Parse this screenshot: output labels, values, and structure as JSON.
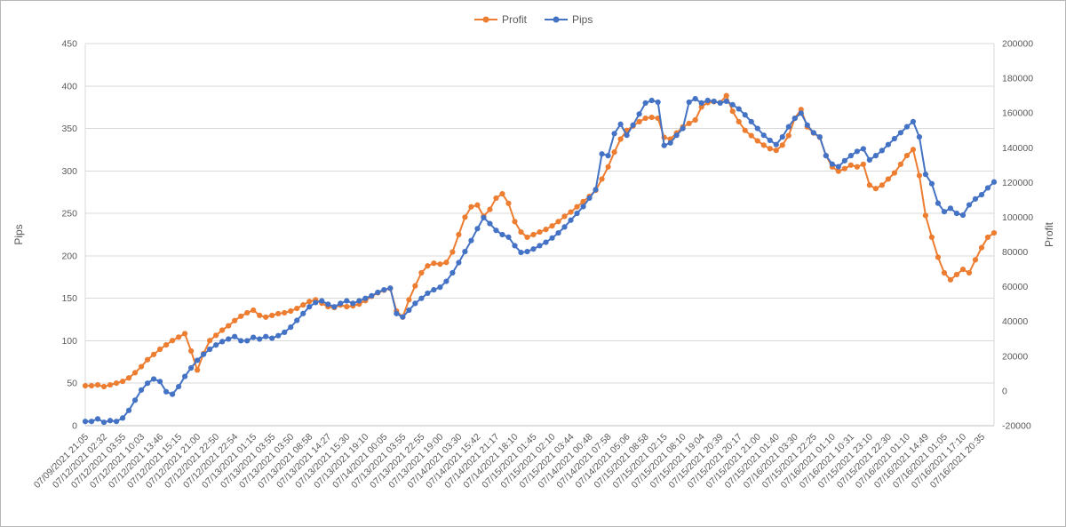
{
  "chart_data": {
    "type": "line",
    "title": "",
    "legend_position": "top",
    "grid": "horizontal",
    "label_every_n_points": 3,
    "x_labels": [
      "07/09/2021 21:05",
      "07/12/2021 02:32",
      "07/12/2021 03:55",
      "07/12/2021 10:03",
      "07/12/2021 13:46",
      "07/12/2021 15:15",
      "07/12/2021 21:00",
      "07/12/2021 22:50",
      "07/12/2021 22:54",
      "07/13/2021 01:15",
      "07/13/2021 03:55",
      "07/13/2021 03:50",
      "07/13/2021 08:58",
      "07/13/2021 14:27",
      "07/13/2021 15:30",
      "07/13/2021 19:10",
      "07/14/2021 00:05",
      "07/13/2021 03:55",
      "07/13/2021 22:55",
      "07/13/2021 19:00",
      "07/14/2021 03:30",
      "07/14/2021 15:42",
      "07/14/2021 21:17",
      "07/14/2021 18:10",
      "07/15/2021 01:45",
      "07/15/2021 02:10",
      "07/15/2021 03:44",
      "07/14/2021 00:48",
      "07/14/2021 07:58",
      "07/14/2021 05:06",
      "07/15/2021 08:58",
      "07/15/2021 02:15",
      "07/15/2021 08:10",
      "07/15/2021 19:04",
      "07/15/2021 20:39",
      "07/15/2021 20:17",
      "07/15/2021 21:00",
      "07/15/2021 01:40",
      "07/16/2021 03:30",
      "07/15/2021 22:25",
      "07/16/2021 01:10",
      "07/16/2021 10:31",
      "07/15/2021 23:10",
      "07/15/2021 22:30",
      "07/16/2021 01:10",
      "07/16/2021 14:49",
      "07/16/2021 01:05",
      "07/16/2021 17:10",
      "07/16/2021 20:35"
    ],
    "left_axis": {
      "title": "Pips",
      "range": [
        0,
        450
      ],
      "tick_step": 50,
      "tick_labels": [
        "450",
        "400",
        "350",
        "300",
        "250",
        "200",
        "150",
        "100",
        "50",
        "0"
      ]
    },
    "right_axis": {
      "title": "Profit",
      "range": [
        -20000,
        200000
      ],
      "tick_step": 20000,
      "tick_labels": [
        "200000",
        "180000",
        "160000",
        "140000",
        "120000",
        "100000",
        "80000",
        "60000",
        "40000",
        "20000",
        "0",
        "-20000"
      ]
    },
    "colors": {
      "profit": "#ED7D31",
      "pips": "#4472C4",
      "grid": "#D9D9D9",
      "axis_line": "#BFBFBF",
      "text": "#595959"
    },
    "series": [
      {
        "name": "Profit",
        "axis": "right",
        "color": "#ED7D31",
        "values": [
          3000,
          3000,
          3500,
          2500,
          3500,
          4500,
          5500,
          7500,
          10500,
          14000,
          18000,
          21000,
          24000,
          26500,
          29000,
          31000,
          33000,
          23000,
          12000,
          21500,
          29000,
          32000,
          35000,
          37500,
          40500,
          43000,
          45000,
          46500,
          43500,
          42500,
          43500,
          44500,
          45000,
          46000,
          47500,
          49500,
          51500,
          52500,
          50500,
          48500,
          48000,
          49500,
          48500,
          49000,
          50000,
          52000,
          54500,
          56500,
          58000,
          59000,
          46000,
          42500,
          52500,
          60500,
          68000,
          72000,
          73500,
          73000,
          74000,
          80000,
          90000,
          100000,
          106000,
          107000,
          100500,
          104500,
          111000,
          113500,
          108000,
          97500,
          91500,
          88500,
          90000,
          91500,
          93000,
          95000,
          97500,
          100500,
          103000,
          106000,
          109000,
          112000,
          115500,
          122000,
          129000,
          137500,
          145000,
          150000,
          152500,
          155000,
          157000,
          157500,
          157000,
          146000,
          145000,
          148500,
          152000,
          154000,
          156000,
          163500,
          166000,
          166500,
          166000,
          170000,
          161000,
          155000,
          150000,
          147000,
          144000,
          141500,
          139500,
          138500,
          141500,
          147000,
          157000,
          162000,
          152000,
          148500,
          146000,
          135500,
          129000,
          126500,
          128000,
          130000,
          129000,
          130500,
          118500,
          116500,
          118500,
          122000,
          125500,
          130500,
          135500,
          139000,
          124000,
          101000,
          88500,
          77000,
          68000,
          64000,
          67000,
          70000,
          68000,
          75500,
          82500,
          88500,
          91000
        ]
      },
      {
        "name": "Pips",
        "axis": "left",
        "color": "#4472C4",
        "values": [
          5,
          5,
          8,
          4,
          6,
          5,
          9,
          18,
          30,
          42,
          50,
          55,
          52,
          40,
          37,
          46,
          58,
          68,
          77,
          84,
          90,
          95,
          99,
          102,
          105,
          100,
          100,
          104,
          102,
          105,
          103,
          106,
          110,
          116,
          124,
          132,
          140,
          145,
          147,
          143,
          140,
          144,
          147,
          144,
          147,
          150,
          153,
          157,
          160,
          162,
          132,
          128,
          136,
          144,
          150,
          156,
          160,
          163,
          170,
          180,
          192,
          205,
          218,
          232,
          245,
          238,
          230,
          225,
          222,
          212,
          204,
          205,
          208,
          212,
          216,
          221,
          227,
          234,
          242,
          250,
          258,
          268,
          278,
          320,
          318,
          344,
          355,
          342,
          354,
          367,
          380,
          383,
          381,
          330,
          333,
          342,
          350,
          381,
          385,
          380,
          383,
          382,
          380,
          382,
          378,
          373,
          366,
          358,
          350,
          342,
          336,
          331,
          340,
          352,
          362,
          368,
          354,
          345,
          340,
          318,
          308,
          305,
          312,
          318,
          323,
          326,
          313,
          318,
          324,
          331,
          338,
          345,
          352,
          358,
          340,
          296,
          285,
          262,
          252,
          256,
          250,
          248,
          260,
          267,
          272,
          280,
          287
        ]
      }
    ]
  }
}
